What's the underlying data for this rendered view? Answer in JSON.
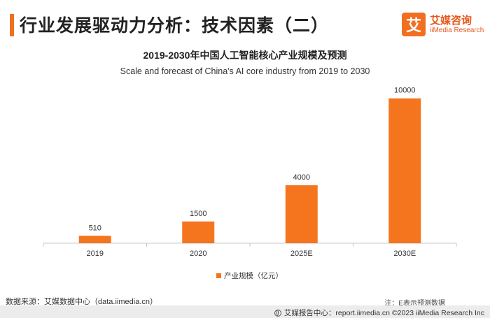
{
  "header": {
    "title": "行业发展驱动力分析：技术因素（二）",
    "logo_mark": "艾",
    "logo_name": "艾媒咨询",
    "logo_sub": "iiMedia Research"
  },
  "chart_data": {
    "type": "bar",
    "title": "2019-2030年中国人工智能核心产业规模及预测",
    "subtitle": "Scale and forecast of China's AI core industry from 2019 to 2030",
    "categories": [
      "2019",
      "2020",
      "2025E",
      "2030E"
    ],
    "series": [
      {
        "name": "产业规模（亿元）",
        "values": [
          510,
          1500,
          4000,
          10000
        ],
        "color": "#f5751f"
      }
    ],
    "ylim": [
      0,
      11000
    ],
    "grid": false,
    "legend": "bottom-center"
  },
  "footer": {
    "source": "数据来源：艾媒数据中心（data.iimedia.cn）",
    "note": "注：E表示预测数据",
    "report": "艾媒报告中心：report.iimedia.cn  ©2023  iiMedia Research  Inc"
  }
}
